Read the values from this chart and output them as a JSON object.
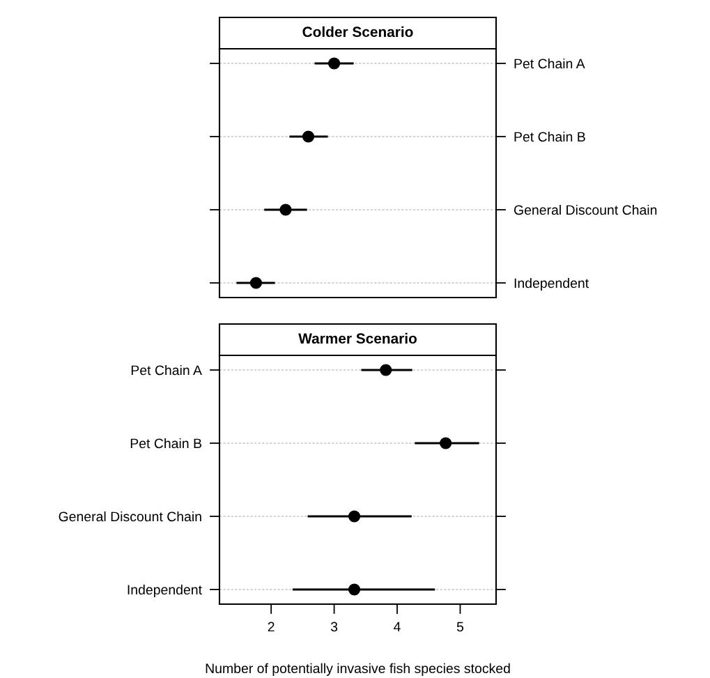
{
  "chart_data": [
    {
      "type": "scatter",
      "orientation": "horizontal",
      "title": "Colder Scenario",
      "categories": [
        "Pet Chain A",
        "Pet Chain B",
        "General Discount Chain",
        "Independent"
      ],
      "color": "#000000",
      "values": [
        3.0,
        2.59,
        2.23,
        1.76
      ],
      "errors": [
        [
          2.69,
          3.31
        ],
        [
          2.29,
          2.9
        ],
        [
          1.89,
          2.57
        ],
        [
          1.45,
          2.06
        ]
      ],
      "xlim": [
        1.18,
        5.57
      ],
      "xticks": [
        2,
        3,
        4,
        5
      ],
      "tick_labels": "y",
      "grid": "y",
      "marker": "circle"
    },
    {
      "type": "scatter",
      "orientation": "horizontal",
      "title": "Warmer Scenario",
      "xlabel": "Number of potentially invasive fish species stocked",
      "categories": [
        "Pet Chain A",
        "Pet Chain B",
        "General Discount Chain",
        "Independent"
      ],
      "color": "#000000",
      "values": [
        3.82,
        4.77,
        3.32,
        3.32
      ],
      "errors": [
        [
          3.43,
          4.24
        ],
        [
          4.28,
          5.3
        ],
        [
          2.58,
          4.23
        ],
        [
          2.34,
          4.6
        ]
      ],
      "xlim": [
        1.18,
        5.57
      ],
      "xticks": [
        2,
        3,
        4,
        5
      ],
      "grid": "y",
      "marker": "circle"
    }
  ]
}
